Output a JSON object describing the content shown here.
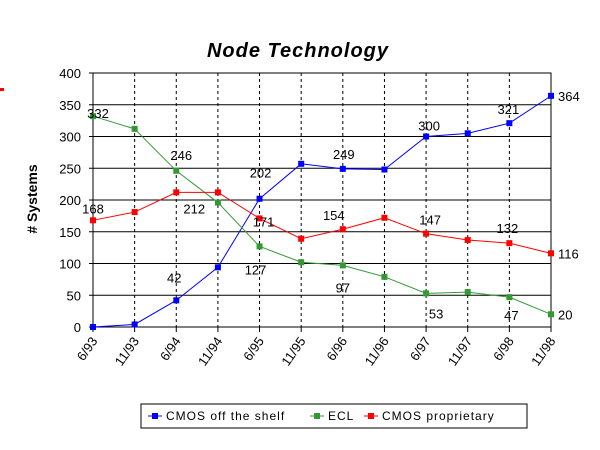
{
  "chart_data": {
    "type": "line",
    "title": "Node Technology",
    "xlabel": "",
    "ylabel": "# Systems",
    "ylim": [
      0,
      400
    ],
    "yticks": [
      0,
      50,
      100,
      150,
      200,
      250,
      300,
      350,
      400
    ],
    "categories": [
      "6/93",
      "11/93",
      "6/94",
      "11/94",
      "6/95",
      "11/95",
      "6/96",
      "11/96",
      "6/97",
      "11/97",
      "6/98",
      "11/98"
    ],
    "grid": {
      "horizontal": true,
      "vertical": "dashed"
    },
    "legend": "bottom",
    "series": [
      {
        "name": "CMOS off the shelf",
        "color": "#0000ff",
        "marker": "square",
        "values": [
          0,
          4,
          42,
          94,
          202,
          257,
          249,
          248,
          300,
          305,
          321,
          364
        ],
        "labels": [
          null,
          null,
          "42",
          null,
          "202",
          null,
          "249",
          null,
          "300",
          null,
          "321",
          "364"
        ]
      },
      {
        "name": "ECL",
        "color": "#339933",
        "marker": "square",
        "values": [
          332,
          312,
          246,
          196,
          127,
          102,
          97,
          79,
          53,
          55,
          47,
          20
        ],
        "labels": [
          "332",
          null,
          "246",
          null,
          "127",
          null,
          "97",
          null,
          "53",
          null,
          "47",
          "20"
        ]
      },
      {
        "name": "CMOS proprietary",
        "color": "#ff0000",
        "marker": "square",
        "values": [
          168,
          181,
          212,
          212,
          171,
          139,
          154,
          172,
          147,
          137,
          132,
          116
        ],
        "labels": [
          "168",
          null,
          "212",
          null,
          "171",
          null,
          "154",
          null,
          "147",
          null,
          "132",
          "116"
        ]
      }
    ]
  }
}
